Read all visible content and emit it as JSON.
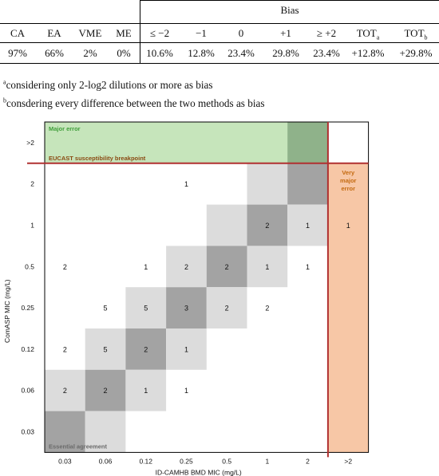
{
  "table": {
    "group_header": "Bias",
    "columns": [
      {
        "label": "CA",
        "value": "97%"
      },
      {
        "label": "EA",
        "value": "66%"
      },
      {
        "label": "VME",
        "value": "2%"
      },
      {
        "label": "ME",
        "value": "0%"
      },
      {
        "label": "≤ −2",
        "value": "10.6%"
      },
      {
        "label": "−1",
        "value": "12.8%"
      },
      {
        "label": "0",
        "value": "23.4%"
      },
      {
        "label": "+1",
        "value": "29.8%"
      },
      {
        "label": "≥ +2",
        "value": "23.4%"
      },
      {
        "label": "TOT",
        "sub": "a",
        "value": "+12.8%"
      },
      {
        "label": "TOT",
        "sub": "b",
        "value": "+29.8%"
      }
    ]
  },
  "footnotes": [
    {
      "marker": "a",
      "text": "considering only 2-log2 dilutions or more as bias"
    },
    {
      "marker": "b",
      "text": "consdering every difference between the two methods as bias"
    }
  ],
  "chart_data": {
    "type": "heatmap",
    "xlabel": "ID-CAMHB BMD MIC (mg/L)",
    "ylabel": "ComASP MIC (mg/L)",
    "x_categories": [
      "0.03",
      "0.06",
      "0.12",
      "0.25",
      "0.5",
      "1",
      "2",
      ">2"
    ],
    "y_categories": [
      ">2",
      "2",
      "1",
      "0.5",
      "0.25",
      "0.12",
      "0.06",
      "0.03"
    ],
    "regions": {
      "major_error": "Major error",
      "very_major_error": "Very major error",
      "breakpoint_label": "EUCAST susceptibility breakpoint",
      "essential_agreement": "Essential agreement"
    },
    "cells": [
      {
        "x": "0.25",
        "y": "2",
        "value": 1
      },
      {
        "x": "1",
        "y": "1",
        "value": 2
      },
      {
        "x": "2",
        "y": "1",
        "value": 1
      },
      {
        "x": ">2",
        "y": "1",
        "value": 1
      },
      {
        "x": "0.03",
        "y": "0.5",
        "value": 2
      },
      {
        "x": "0.12",
        "y": "0.5",
        "value": 1
      },
      {
        "x": "0.25",
        "y": "0.5",
        "value": 2
      },
      {
        "x": "0.5",
        "y": "0.5",
        "value": 2
      },
      {
        "x": "1",
        "y": "0.5",
        "value": 1
      },
      {
        "x": "2",
        "y": "0.5",
        "value": 1
      },
      {
        "x": "0.06",
        "y": "0.25",
        "value": 5
      },
      {
        "x": "0.12",
        "y": "0.25",
        "value": 5
      },
      {
        "x": "0.25",
        "y": "0.25",
        "value": 3
      },
      {
        "x": "0.5",
        "y": "0.25",
        "value": 2
      },
      {
        "x": "1",
        "y": "0.25",
        "value": 2
      },
      {
        "x": "0.03",
        "y": "0.12",
        "value": 2
      },
      {
        "x": "0.06",
        "y": "0.12",
        "value": 5
      },
      {
        "x": "0.12",
        "y": "0.12",
        "value": 2
      },
      {
        "x": "0.25",
        "y": "0.12",
        "value": 1
      },
      {
        "x": "0.03",
        "y": "0.06",
        "value": 2
      },
      {
        "x": "0.06",
        "y": "0.06",
        "value": 2
      },
      {
        "x": "0.12",
        "y": "0.06",
        "value": 1
      },
      {
        "x": "0.25",
        "y": "0.06",
        "value": 1
      }
    ],
    "colors": {
      "agreement": "#a3a3a3",
      "within_one_dilution": "#dcdcdc",
      "major_error": "#c6e5bb",
      "very_major_error": "#f7c7a6",
      "breakpoint_line": "#b03030",
      "major_error_text": "#3f9e3a",
      "very_major_error_text": "#c46a10"
    }
  }
}
